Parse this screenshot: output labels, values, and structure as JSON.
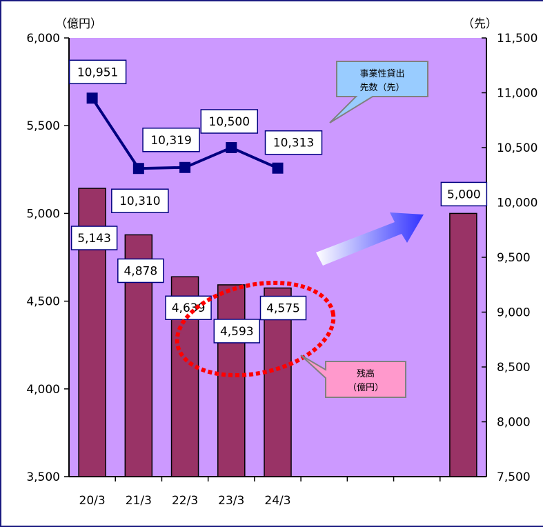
{
  "chart_data": {
    "type": "bar",
    "categories": [
      "20/3",
      "21/3",
      "22/3",
      "23/3",
      "24/3",
      "",
      "",
      "",
      ""
    ],
    "left_unit": "（億円）",
    "right_unit": "（先）",
    "left_axis": {
      "min": 3500,
      "max": 6000,
      "ticks": [
        "3,500",
        "4,000",
        "4,500",
        "5,000",
        "5,500",
        "6,000"
      ]
    },
    "right_axis": {
      "min": 7500,
      "max": 11500,
      "ticks": [
        "7,500",
        "8,000",
        "8,500",
        "9,000",
        "9,500",
        "10,000",
        "10,500",
        "11,000",
        "11,500"
      ]
    },
    "bar_series": {
      "name": "残高（億円）",
      "values": [
        5143,
        4878,
        4639,
        4593,
        4575,
        null,
        null,
        null,
        5000
      ],
      "labels": [
        "5,143",
        "4,878",
        "4,639",
        "4,593",
        "4,575",
        "",
        "",
        "",
        "5,000"
      ],
      "color": "#993366"
    },
    "line_series": {
      "name": "事業性貸出先数（先）",
      "values": [
        10951,
        10310,
        10319,
        10500,
        10313
      ],
      "labels": [
        "10,951",
        "10,310",
        "10,319",
        "10,500",
        "10,313"
      ],
      "color": "#000080"
    },
    "callouts": {
      "line_callout": [
        "事業性貸出",
        "先数（先）"
      ],
      "bar_callout": [
        "残高",
        "（億円）"
      ]
    },
    "colors": {
      "plot_bg": "#cc99ff",
      "line_callout_bg": "#99ccff",
      "bar_callout_bg": "#ff99cc",
      "ellipse": "#ff0000",
      "arrow_start": "#ffffff",
      "arrow_end": "#3333ff"
    }
  }
}
